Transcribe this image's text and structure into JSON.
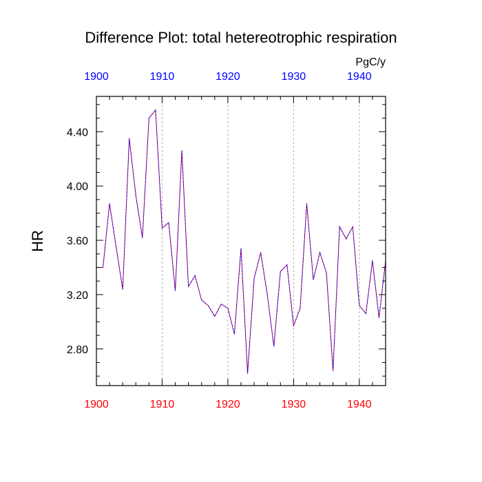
{
  "chart_data": {
    "type": "line",
    "title": "Difference Plot: total hetereotrophic respiration",
    "ylabel": "HR",
    "units_label": "PgC/y",
    "xlim": [
      1900,
      1944
    ],
    "ylim": [
      2.53,
      4.66
    ],
    "x_ticks": [
      1900,
      1910,
      1920,
      1930,
      1940
    ],
    "x_tick_labels": [
      "1900",
      "1910",
      "1920",
      "1930",
      "1940"
    ],
    "y_ticks": [
      2.8,
      3.2,
      3.6,
      4.0,
      4.4
    ],
    "y_tick_labels": [
      "2.80",
      "3.20",
      "3.60",
      "4.00",
      "4.40"
    ],
    "grid": "vertical dashed at major x ticks",
    "x": [
      1900,
      1901,
      1902,
      1903,
      1904,
      1905,
      1906,
      1907,
      1908,
      1909,
      1910,
      1911,
      1912,
      1913,
      1914,
      1915,
      1916,
      1917,
      1918,
      1919,
      1920,
      1921,
      1922,
      1923,
      1924,
      1925,
      1926,
      1927,
      1928,
      1929,
      1930,
      1931,
      1932,
      1933,
      1934,
      1935,
      1936,
      1937,
      1938,
      1939,
      1940,
      1941,
      1942,
      1943,
      1944
    ],
    "series": [
      {
        "values": [
          3.4,
          3.4,
          3.87,
          3.55,
          3.24,
          4.35,
          3.93,
          3.62,
          4.5,
          4.56,
          3.69,
          3.73,
          3.23,
          4.26,
          3.26,
          3.34,
          3.16,
          3.12,
          3.04,
          3.13,
          3.1,
          2.91,
          3.54,
          2.62,
          3.32,
          3.51,
          3.2,
          2.82,
          3.37,
          3.42,
          2.97,
          3.1,
          3.87,
          3.31,
          3.51,
          3.36,
          2.64,
          3.7,
          3.61,
          3.7,
          3.12,
          3.06,
          3.45,
          3.03,
          3.45
        ],
        "color_a": "#0000ff",
        "color_b": "#ff0000"
      }
    ],
    "colors": {
      "top_axis_labels": "#0000ff",
      "bottom_axis_labels": "#ff0000",
      "frame": "#000000",
      "grid": "#999999"
    }
  }
}
